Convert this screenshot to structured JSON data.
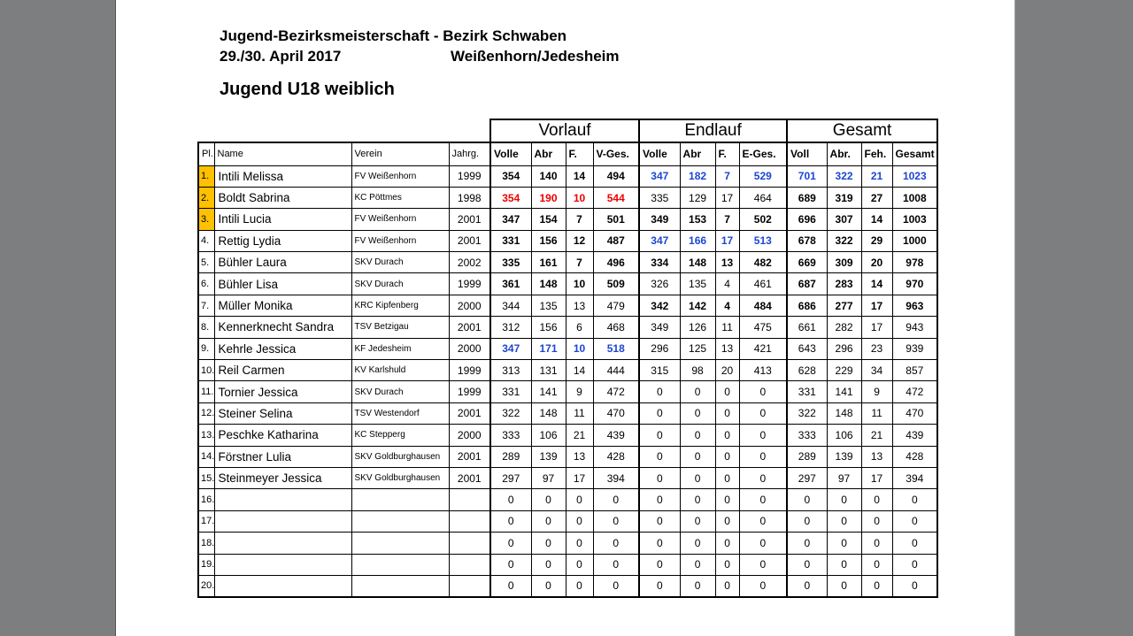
{
  "page": {
    "title": "Jugend-Bezirksmeisterschaft - Bezirk Schwaben",
    "date": "29./30. April 2017",
    "location": "Weißenhorn/Jedesheim",
    "subtitle": "Jugend U18 weiblich"
  },
  "colors": {
    "highlight": "#FFC000",
    "blue": "#1C46D2",
    "red": "#EE0000",
    "bg": "#7D7E80"
  },
  "table": {
    "group_headers": [
      "Vorlauf",
      "Endlauf",
      "Gesamt"
    ],
    "columns": [
      "Pl.",
      "Name",
      "Verein",
      "Jahrg.",
      "Volle",
      "Abr",
      "F.",
      "V-Ges.",
      "Volle",
      "Abr",
      "F.",
      "E-Ges.",
      "Voll",
      "Abr.",
      "Feh.",
      "Gesamt"
    ],
    "column_keys": [
      "pl",
      "name",
      "verein",
      "jahrg",
      "v-volle",
      "v-abr",
      "v-f",
      "v-ges",
      "e-volle",
      "e-abr",
      "e-f",
      "e-ges",
      "g-voll",
      "g-abr",
      "g-feh",
      "g-gesamt"
    ],
    "rows": [
      {
        "pl": "1.",
        "pl_highlight": true,
        "name": "Intili Melissa",
        "verein": "FV Weißenhorn",
        "jahrg": "1999",
        "vorlauf": [
          354,
          140,
          14,
          494
        ],
        "vorlauf_style": "bold",
        "endlauf": [
          347,
          182,
          7,
          529
        ],
        "endlauf_style": "blue",
        "gesamt": [
          701,
          322,
          21,
          1023
        ],
        "gesamt_style": "blue"
      },
      {
        "pl": "2.",
        "pl_highlight": true,
        "name": "Boldt Sabrina",
        "verein": "KC Pöttmes",
        "jahrg": "1998",
        "vorlauf": [
          354,
          190,
          10,
          544
        ],
        "vorlauf_style": "red",
        "endlauf": [
          335,
          129,
          17,
          464
        ],
        "endlauf_style": "normal",
        "gesamt": [
          689,
          319,
          27,
          1008
        ],
        "gesamt_style": "bold"
      },
      {
        "pl": "3.",
        "pl_highlight": true,
        "name": "Intili Lucia",
        "verein": "FV Weißenhorn",
        "jahrg": "2001",
        "vorlauf": [
          347,
          154,
          7,
          501
        ],
        "vorlauf_style": "bold",
        "endlauf": [
          349,
          153,
          7,
          502
        ],
        "endlauf_style": "bold",
        "gesamt": [
          696,
          307,
          14,
          1003
        ],
        "gesamt_style": "bold"
      },
      {
        "pl": "4.",
        "pl_highlight": false,
        "name": "Rettig Lydia",
        "verein": "FV Weißenhorn",
        "jahrg": "2001",
        "vorlauf": [
          331,
          156,
          12,
          487
        ],
        "vorlauf_style": "bold",
        "endlauf": [
          347,
          166,
          17,
          513
        ],
        "endlauf_style": "blue",
        "gesamt": [
          678,
          322,
          29,
          1000
        ],
        "gesamt_style": "bold"
      },
      {
        "pl": "5.",
        "pl_highlight": false,
        "name": "Bühler Laura",
        "verein": "SKV Durach",
        "jahrg": "2002",
        "vorlauf": [
          335,
          161,
          7,
          496
        ],
        "vorlauf_style": "bold",
        "endlauf": [
          334,
          148,
          13,
          482
        ],
        "endlauf_style": "bold",
        "gesamt": [
          669,
          309,
          20,
          978
        ],
        "gesamt_style": "bold"
      },
      {
        "pl": "6.",
        "pl_highlight": false,
        "name": "Bühler Lisa",
        "verein": "SKV Durach",
        "jahrg": "1999",
        "vorlauf": [
          361,
          148,
          10,
          509
        ],
        "vorlauf_style": "bold",
        "endlauf": [
          326,
          135,
          4,
          461
        ],
        "endlauf_style": "normal",
        "gesamt": [
          687,
          283,
          14,
          970
        ],
        "gesamt_style": "bold"
      },
      {
        "pl": "7.",
        "pl_highlight": false,
        "name": "Müller Monika",
        "verein": "KRC Kipfenberg",
        "jahrg": "2000",
        "vorlauf": [
          344,
          135,
          13,
          479
        ],
        "vorlauf_style": "normal",
        "endlauf": [
          342,
          142,
          4,
          484
        ],
        "endlauf_style": "bold",
        "gesamt": [
          686,
          277,
          17,
          963
        ],
        "gesamt_style": "bold"
      },
      {
        "pl": "8.",
        "pl_highlight": false,
        "name": "Kennerknecht Sandra",
        "verein": "TSV Betzigau",
        "jahrg": "2001",
        "vorlauf": [
          312,
          156,
          6,
          468
        ],
        "vorlauf_style": "normal",
        "endlauf": [
          349,
          126,
          11,
          475
        ],
        "endlauf_style": "normal",
        "gesamt": [
          661,
          282,
          17,
          943
        ],
        "gesamt_style": "normal"
      },
      {
        "pl": "9.",
        "pl_highlight": false,
        "name": "Kehrle Jessica",
        "verein": "KF Jedesheim",
        "jahrg": "2000",
        "vorlauf": [
          347,
          171,
          10,
          518
        ],
        "vorlauf_style": "blue",
        "endlauf": [
          296,
          125,
          13,
          421
        ],
        "endlauf_style": "normal",
        "gesamt": [
          643,
          296,
          23,
          939
        ],
        "gesamt_style": "normal"
      },
      {
        "pl": "10.",
        "pl_highlight": false,
        "name": "Reil Carmen",
        "verein": "KV Karlshuld",
        "jahrg": "1999",
        "vorlauf": [
          313,
          131,
          14,
          444
        ],
        "vorlauf_style": "normal",
        "endlauf": [
          315,
          98,
          20,
          413
        ],
        "endlauf_style": "normal",
        "gesamt": [
          628,
          229,
          34,
          857
        ],
        "gesamt_style": "normal"
      },
      {
        "pl": "11.",
        "pl_highlight": false,
        "name": "Tornier Jessica",
        "verein": "SKV Durach",
        "jahrg": "1999",
        "vorlauf": [
          331,
          141,
          9,
          472
        ],
        "vorlauf_style": "normal",
        "endlauf": [
          0,
          0,
          0,
          0
        ],
        "endlauf_style": "normal",
        "gesamt": [
          331,
          141,
          9,
          472
        ],
        "gesamt_style": "normal"
      },
      {
        "pl": "12.",
        "pl_highlight": false,
        "name": "Steiner Selina",
        "verein": "TSV Westendorf",
        "jahrg": "2001",
        "vorlauf": [
          322,
          148,
          11,
          470
        ],
        "vorlauf_style": "normal",
        "endlauf": [
          0,
          0,
          0,
          0
        ],
        "endlauf_style": "normal",
        "gesamt": [
          322,
          148,
          11,
          470
        ],
        "gesamt_style": "normal"
      },
      {
        "pl": "13.",
        "pl_highlight": false,
        "name": "Peschke Katharina",
        "verein": "KC Stepperg",
        "jahrg": "2000",
        "vorlauf": [
          333,
          106,
          21,
          439
        ],
        "vorlauf_style": "normal",
        "endlauf": [
          0,
          0,
          0,
          0
        ],
        "endlauf_style": "normal",
        "gesamt": [
          333,
          106,
          21,
          439
        ],
        "gesamt_style": "normal"
      },
      {
        "pl": "14.",
        "pl_highlight": false,
        "name": "Förstner Lulia",
        "verein": "SKV Goldburghausen",
        "jahrg": "2001",
        "vorlauf": [
          289,
          139,
          13,
          428
        ],
        "vorlauf_style": "normal",
        "endlauf": [
          0,
          0,
          0,
          0
        ],
        "endlauf_style": "normal",
        "gesamt": [
          289,
          139,
          13,
          428
        ],
        "gesamt_style": "normal"
      },
      {
        "pl": "15.",
        "pl_highlight": false,
        "name": "Steinmeyer Jessica",
        "verein": "SKV Goldburghausen",
        "jahrg": "2001",
        "vorlauf": [
          297,
          97,
          17,
          394
        ],
        "vorlauf_style": "normal",
        "endlauf": [
          0,
          0,
          0,
          0
        ],
        "endlauf_style": "normal",
        "gesamt": [
          297,
          97,
          17,
          394
        ],
        "gesamt_style": "normal"
      },
      {
        "pl": "16.",
        "pl_highlight": false,
        "name": "",
        "verein": "",
        "jahrg": "",
        "vorlauf": [
          0,
          0,
          0,
          0
        ],
        "vorlauf_style": "normal",
        "endlauf": [
          0,
          0,
          0,
          0
        ],
        "endlauf_style": "normal",
        "gesamt": [
          0,
          0,
          0,
          0
        ],
        "gesamt_style": "normal"
      },
      {
        "pl": "17.",
        "pl_highlight": false,
        "name": "",
        "verein": "",
        "jahrg": "",
        "vorlauf": [
          0,
          0,
          0,
          0
        ],
        "vorlauf_style": "normal",
        "endlauf": [
          0,
          0,
          0,
          0
        ],
        "endlauf_style": "normal",
        "gesamt": [
          0,
          0,
          0,
          0
        ],
        "gesamt_style": "normal"
      },
      {
        "pl": "18.",
        "pl_highlight": false,
        "name": "",
        "verein": "",
        "jahrg": "",
        "vorlauf": [
          0,
          0,
          0,
          0
        ],
        "vorlauf_style": "normal",
        "endlauf": [
          0,
          0,
          0,
          0
        ],
        "endlauf_style": "normal",
        "gesamt": [
          0,
          0,
          0,
          0
        ],
        "gesamt_style": "normal"
      },
      {
        "pl": "19.",
        "pl_highlight": false,
        "name": "",
        "verein": "",
        "jahrg": "",
        "vorlauf": [
          0,
          0,
          0,
          0
        ],
        "vorlauf_style": "normal",
        "endlauf": [
          0,
          0,
          0,
          0
        ],
        "endlauf_style": "normal",
        "gesamt": [
          0,
          0,
          0,
          0
        ],
        "gesamt_style": "normal"
      },
      {
        "pl": "20.",
        "pl_highlight": false,
        "name": "",
        "verein": "",
        "jahrg": "",
        "vorlauf": [
          0,
          0,
          0,
          0
        ],
        "vorlauf_style": "normal",
        "endlauf": [
          0,
          0,
          0,
          0
        ],
        "endlauf_style": "normal",
        "gesamt": [
          0,
          0,
          0,
          0
        ],
        "gesamt_style": "normal"
      }
    ]
  }
}
